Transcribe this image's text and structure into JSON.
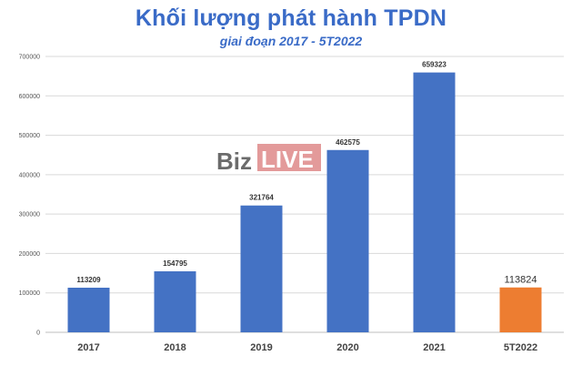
{
  "title": "Khối lượng phát hành TPDN",
  "subtitle": "giai đoạn 2017 - 5T2022",
  "watermark": {
    "part1": "Biz",
    "part2": "LIVE"
  },
  "colors": {
    "bar": "#4472c4",
    "highlight": "#ed7d31",
    "title": "#3a6bc7",
    "grid": "#d9d9d9",
    "watermark_box": "#e39a9a"
  },
  "chart_data": {
    "type": "bar",
    "title": "Khối lượng phát hành TPDN",
    "subtitle": "giai đoạn 2017 - 5T2022",
    "categories": [
      "2017",
      "2018",
      "2019",
      "2020",
      "2021",
      "5T2022"
    ],
    "values": [
      113209,
      154795,
      321764,
      462575,
      659323,
      113824
    ],
    "data_labels": [
      "113209",
      "154795",
      "321764",
      "462575",
      "659323",
      "113824"
    ],
    "highlight_index": 5,
    "ylim": [
      0,
      700000
    ],
    "yticks": [
      0,
      100000,
      200000,
      300000,
      400000,
      500000,
      600000,
      700000
    ],
    "ytick_labels": [
      "0",
      "100000",
      "200000",
      "300000",
      "400000",
      "500000",
      "600000",
      "700000"
    ],
    "grid": true,
    "legend": "none"
  }
}
